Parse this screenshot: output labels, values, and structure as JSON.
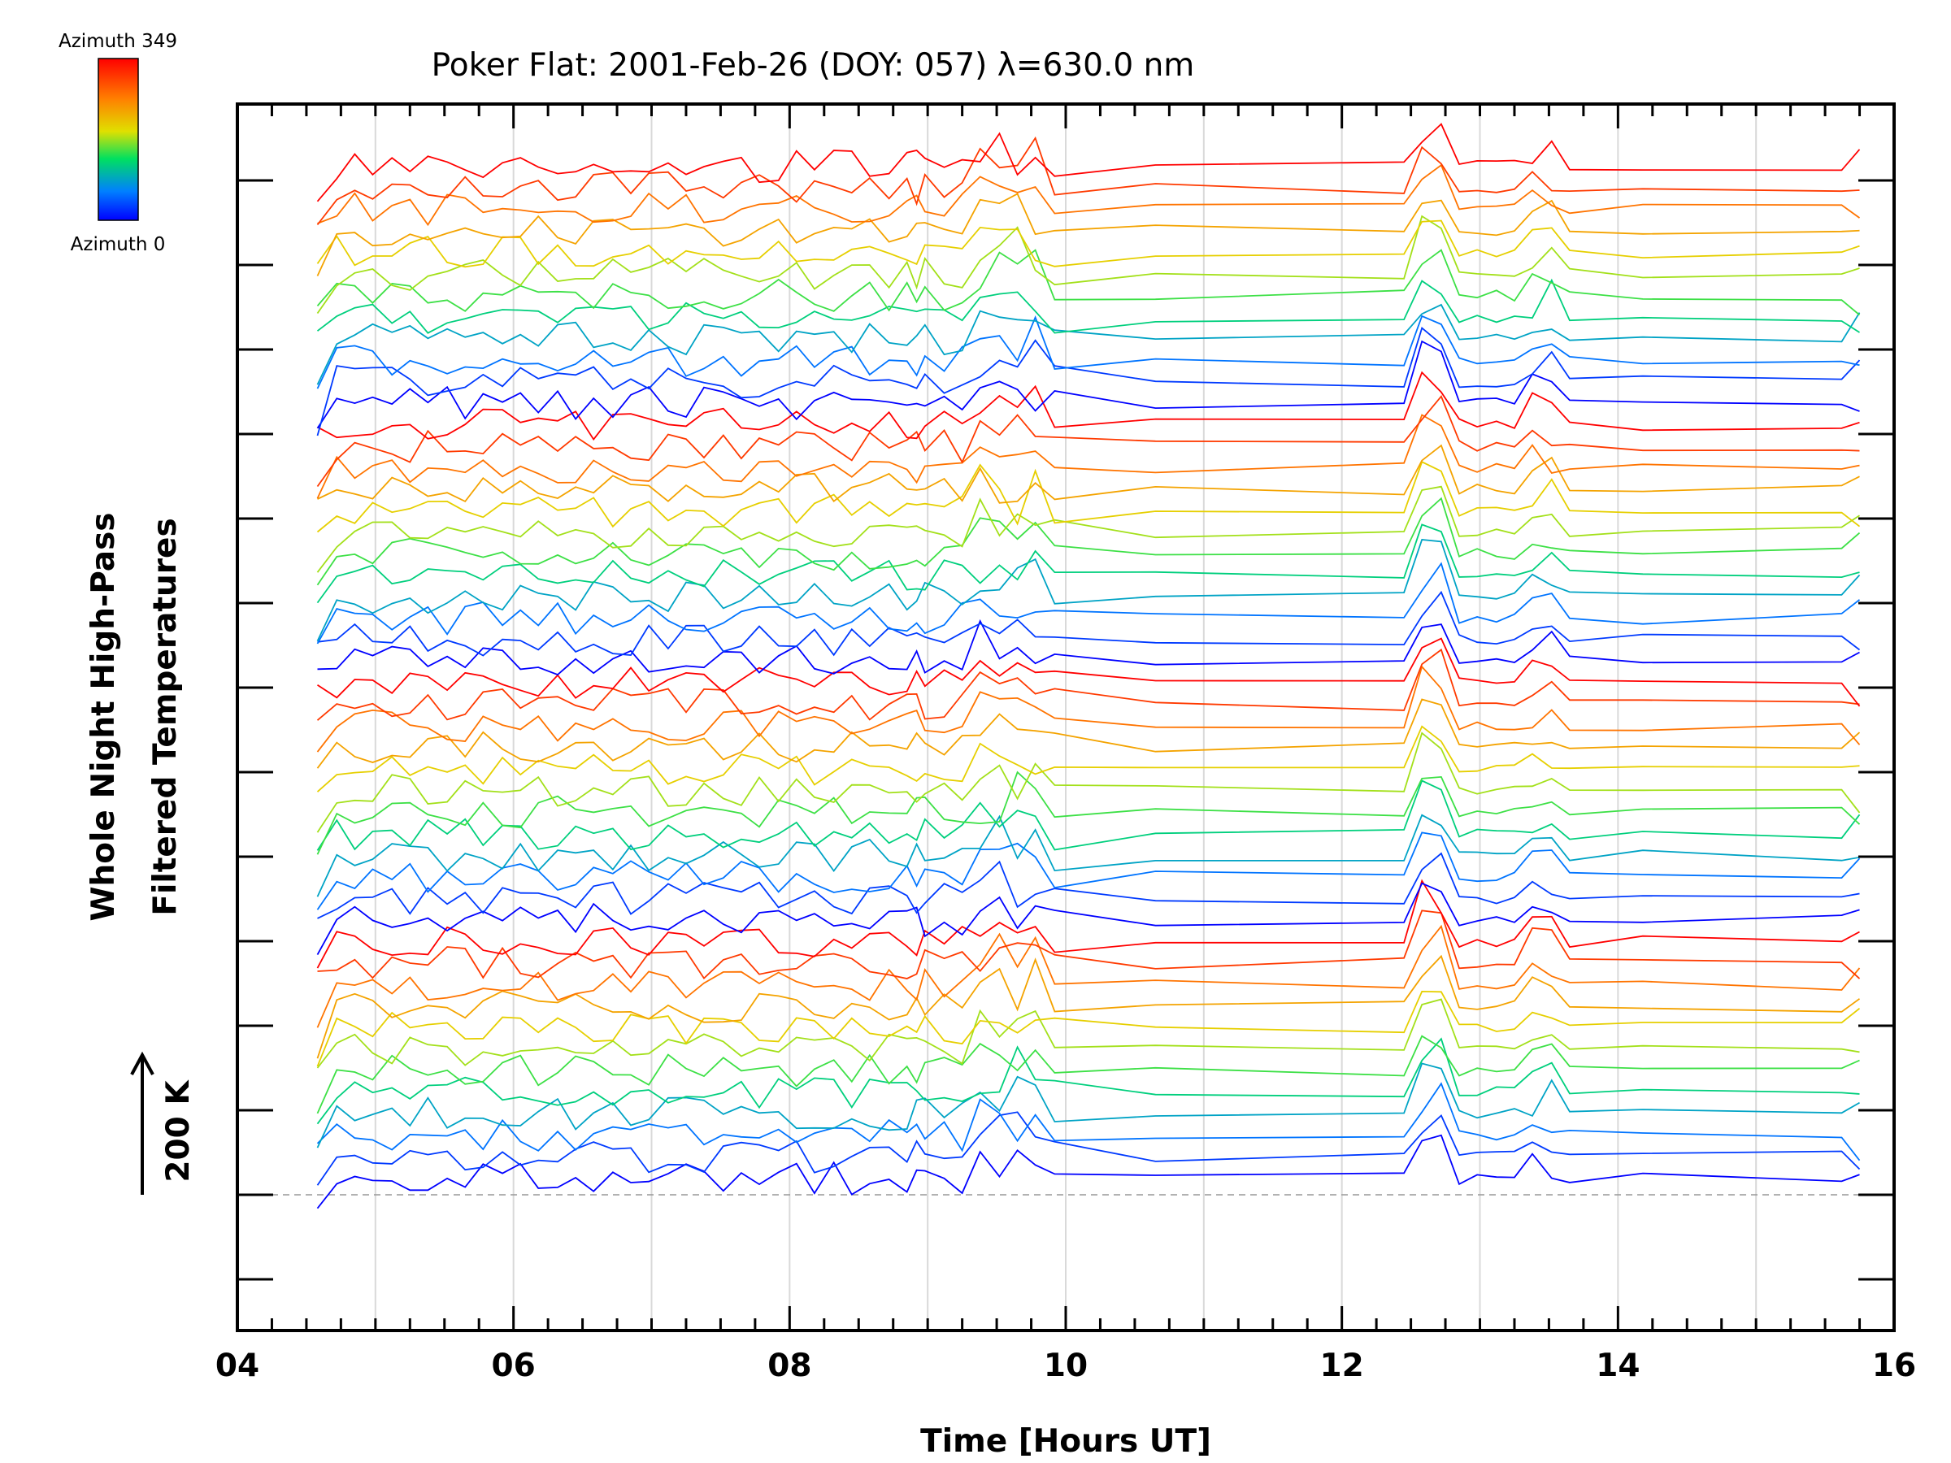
{
  "chart_data": {
    "type": "line",
    "title": "Poker Flat: 2001-Feb-26 (DOY: 057) λ=630.0 nm",
    "xlabel": "Time [Hours UT]",
    "ylabel_line1": "Whole Night High-Pass",
    "ylabel_line2": "Filtered Temperatures",
    "scale_label": "200 K",
    "xlim": [
      4,
      16
    ],
    "x_ticks": [
      {
        "value": 4,
        "label": "04"
      },
      {
        "value": 6,
        "label": "06"
      },
      {
        "value": 8,
        "label": "08"
      },
      {
        "value": 10,
        "label": "10"
      },
      {
        "value": 12,
        "label": "12"
      },
      {
        "value": 14,
        "label": "14"
      },
      {
        "value": 16,
        "label": "16"
      }
    ],
    "grid_x": [
      5,
      6,
      7,
      8,
      9,
      10,
      11,
      12,
      13,
      14,
      15
    ],
    "colorbar": {
      "top_label": "Azimuth 349",
      "bottom_label": "Azimuth 0",
      "colors": [
        "#ff0000",
        "#ff8000",
        "#e0e000",
        "#00e060",
        "#0080ff",
        "#0000ff"
      ]
    },
    "sample_times": [
      4.58,
      4.72,
      4.85,
      4.98,
      5.12,
      5.25,
      5.38,
      5.52,
      5.65,
      5.78,
      5.92,
      6.05,
      6.18,
      6.32,
      6.45,
      6.58,
      6.72,
      6.85,
      6.98,
      7.12,
      7.25,
      7.38,
      7.52,
      7.65,
      7.78,
      7.92,
      8.05,
      8.18,
      8.32,
      8.45,
      8.58,
      8.72,
      8.85,
      8.92,
      8.98,
      9.12,
      9.25,
      9.38,
      9.52,
      9.65,
      9.78,
      9.92,
      10.65,
      12.45,
      12.58,
      12.72,
      12.85,
      12.98,
      13.12,
      13.25,
      13.38,
      13.52,
      13.65,
      14.18,
      15.62,
      15.75
    ],
    "series_count": 48
  }
}
